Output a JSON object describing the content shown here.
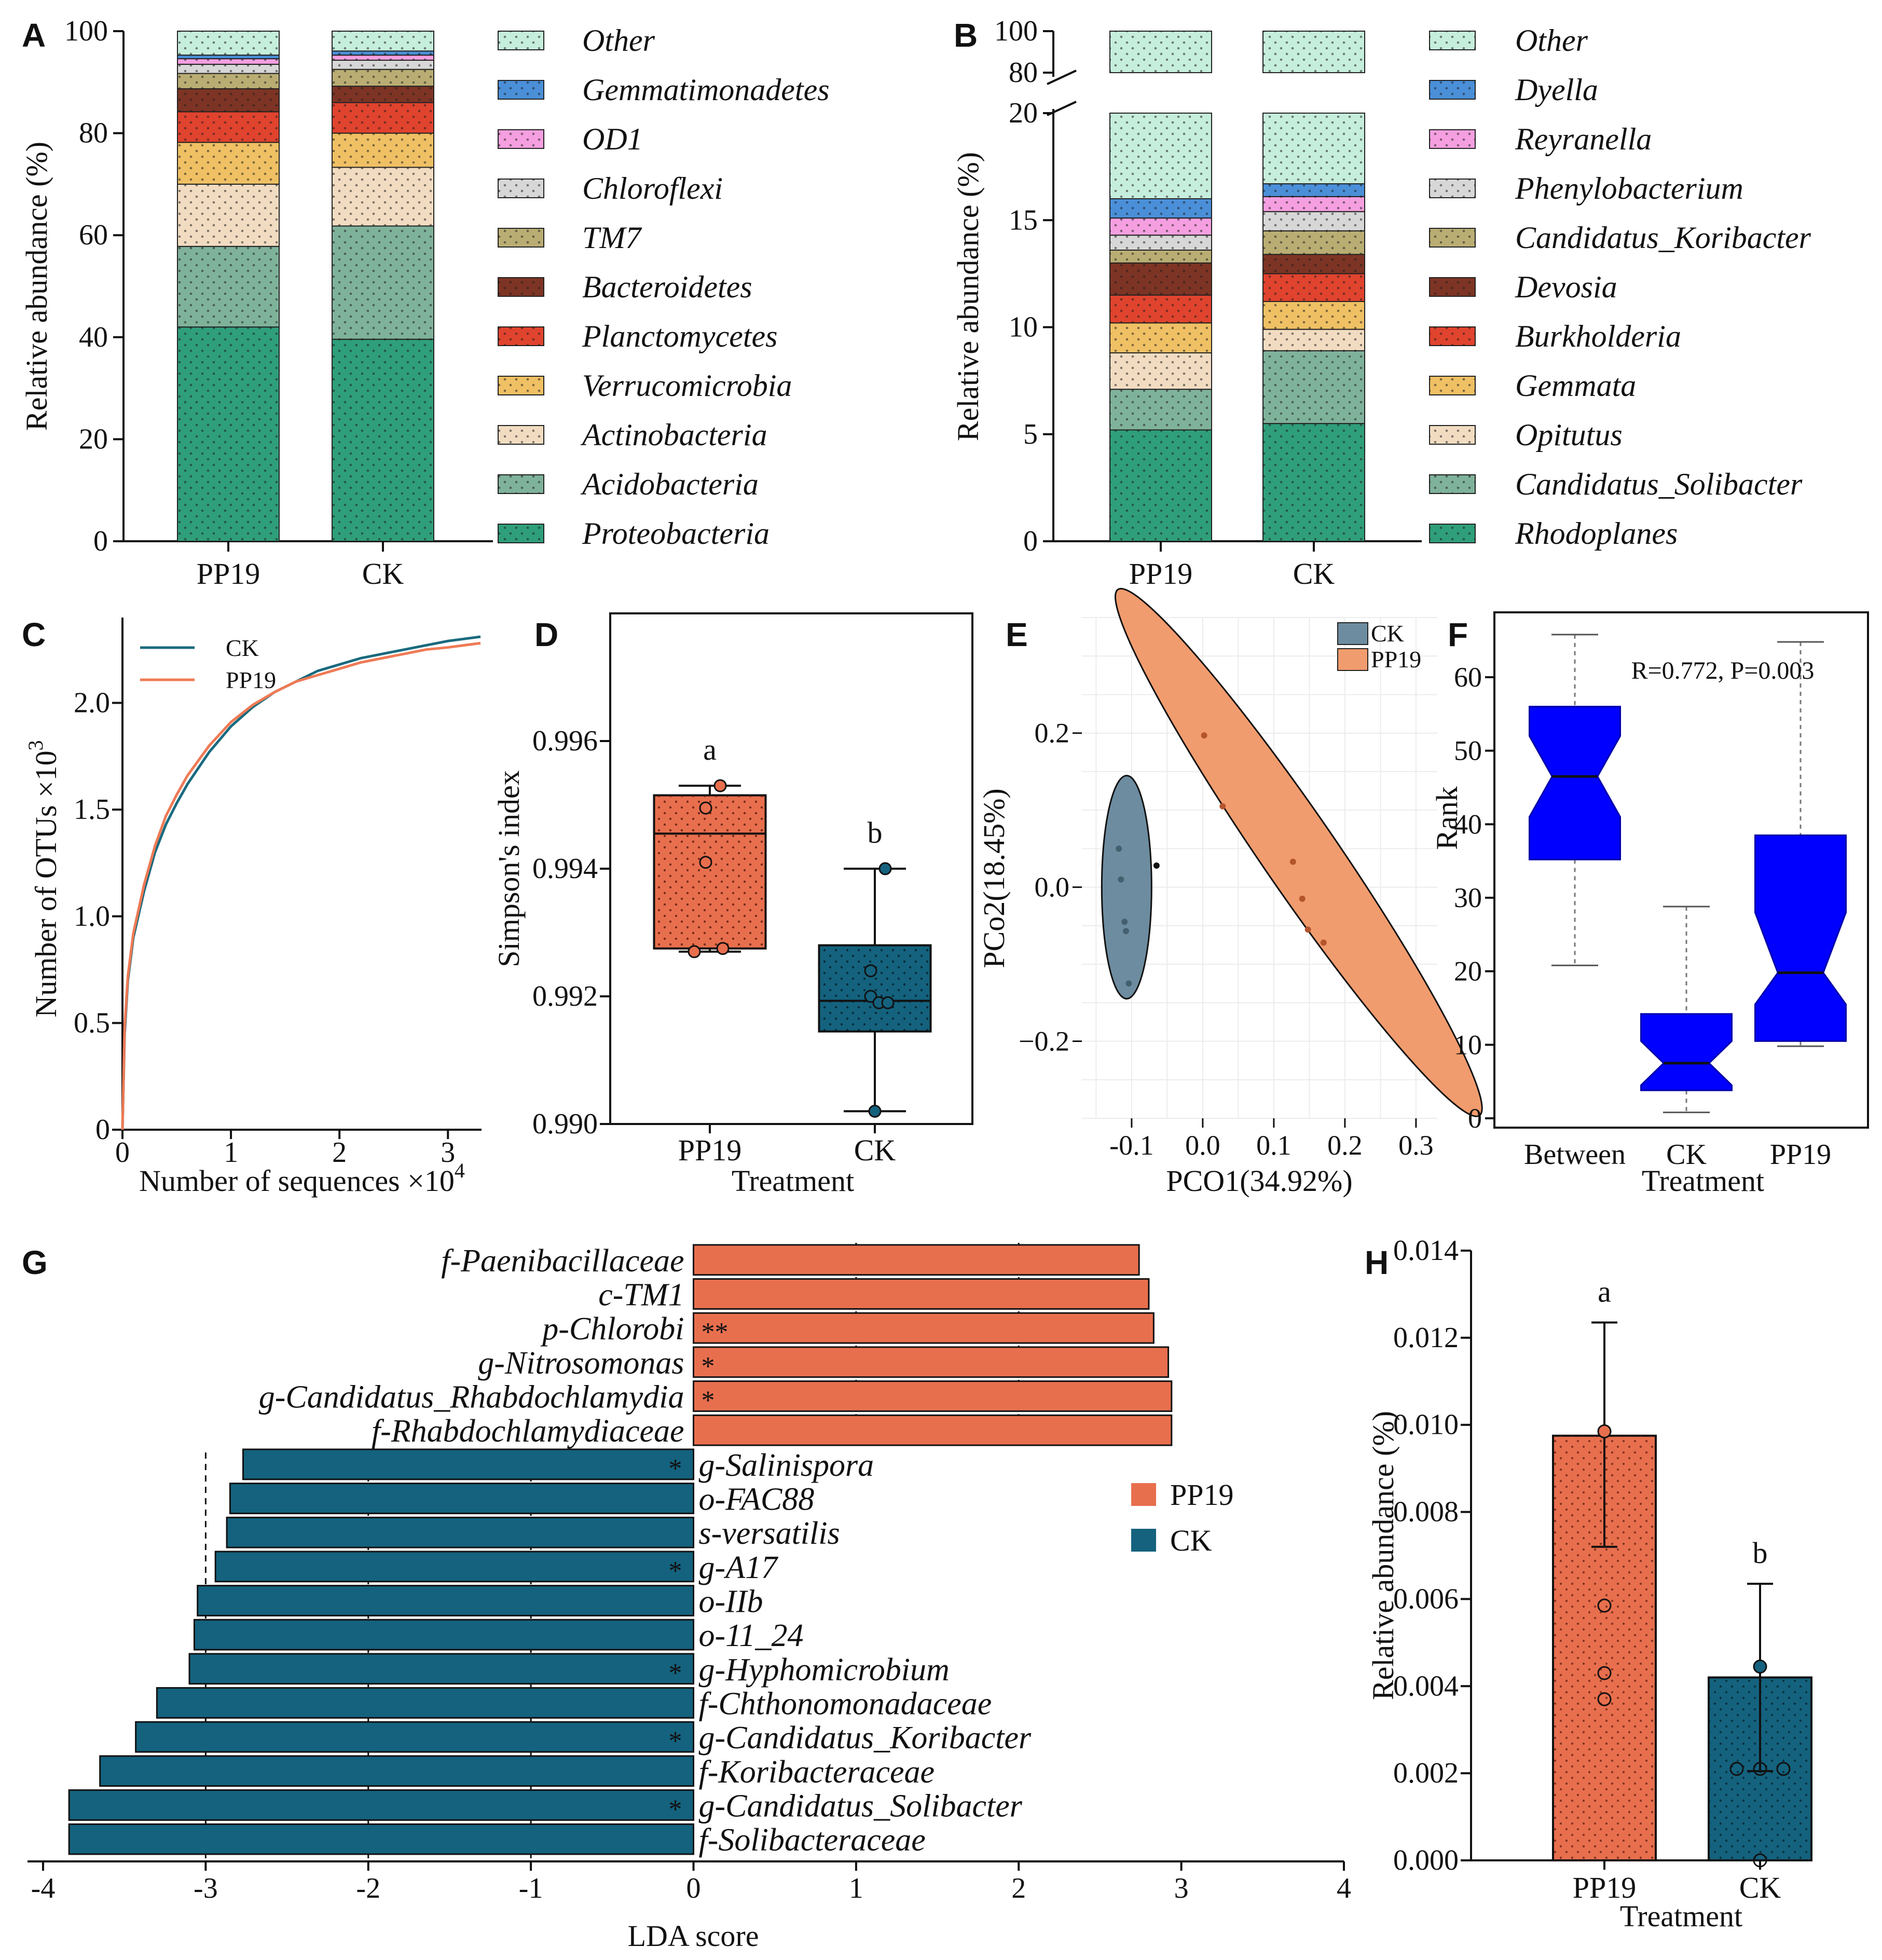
{
  "colors": {
    "proteo": "#2f9e7a",
    "acido": "#7fb29a",
    "actino": "#f2dcc1",
    "verruco": "#efc064",
    "plancto": "#e0432e",
    "bactero": "#7d3424",
    "tm7": "#b9ad73",
    "chloro": "#d7d7d7",
    "od1": "#f59fe0",
    "gemmati": "#4a8fd8",
    "other": "#c6eedc",
    "pp19": "#e86f4e",
    "ck": "#14627e",
    "blue": "#0000ff",
    "line_ck": "#1a6a7e",
    "line_pp19": "#ef7a55",
    "pcoa_ck": "#6d8ca0",
    "pcoa_pp19": "#f19c6e"
  },
  "panels": {
    "A": "A",
    "B": "B",
    "C": "C",
    "D": "D",
    "E": "E",
    "F": "F",
    "G": "G",
    "H": "H"
  },
  "chart_data": [
    {
      "id": "A",
      "type": "bar",
      "stacked": true,
      "categories": [
        "PP19",
        "CK"
      ],
      "ylabel": "Relative abundance (%)",
      "ylim": [
        0,
        100
      ],
      "yticks": [
        "0",
        "20",
        "40",
        "60",
        "80",
        "100"
      ],
      "series": [
        {
          "name": "Proteobacteria",
          "color_key": "proteo",
          "values": [
            42,
            39.6
          ]
        },
        {
          "name": "Acidobacteria",
          "color_key": "acido",
          "values": [
            15.8,
            22.2
          ]
        },
        {
          "name": "Actinobacteria",
          "color_key": "actino",
          "values": [
            12.2,
            11.5
          ]
        },
        {
          "name": "Verrucomicrobia",
          "color_key": "verruco",
          "values": [
            8.2,
            6.7
          ]
        },
        {
          "name": "Planctomycetes",
          "color_key": "plancto",
          "values": [
            6,
            6
          ]
        },
        {
          "name": "Bacteroidetes",
          "color_key": "bactero",
          "values": [
            4.5,
            3.2
          ]
        },
        {
          "name": "TM7",
          "color_key": "tm7",
          "values": [
            3,
            3.3
          ]
        },
        {
          "name": "Chloroflexi",
          "color_key": "chloro",
          "values": [
            1.8,
            1.8
          ]
        },
        {
          "name": "OD1",
          "color_key": "od1",
          "values": [
            1.1,
            1.0
          ]
        },
        {
          "name": "Gemmatimonadetes",
          "color_key": "gemmati",
          "values": [
            0.7,
            0.8
          ]
        },
        {
          "name": "Other",
          "color_key": "other",
          "values": [
            4.7,
            3.9
          ]
        }
      ],
      "legend": [
        "Other",
        "Gemmatimonadetes",
        "OD1",
        "Chloroflexi",
        "TM7",
        "Bacteroidetes",
        "Planctomycetes",
        "Verrucomicrobia",
        "Actinobacteria",
        "Acidobacteria",
        "Proteobacteria"
      ]
    },
    {
      "id": "B",
      "type": "bar",
      "stacked": true,
      "broken_axis": true,
      "categories": [
        "PP19",
        "CK"
      ],
      "ylabel": "Relative abundance (%)",
      "yticks_lower": [
        "0",
        "5",
        "10",
        "15",
        "20"
      ],
      "yticks_upper": [
        "80",
        "100"
      ],
      "series": [
        {
          "name": "Rhodoplanes",
          "color_key": "proteo",
          "values": [
            5.2,
            5.5
          ]
        },
        {
          "name": "Candidatus_Solibacter",
          "color_key": "acido",
          "values": [
            1.9,
            3.4
          ]
        },
        {
          "name": "Opitutus",
          "color_key": "actino",
          "values": [
            1.7,
            1.0
          ]
        },
        {
          "name": "Gemmata",
          "color_key": "verruco",
          "values": [
            1.4,
            1.3
          ]
        },
        {
          "name": "Burkholderia",
          "color_key": "plancto",
          "values": [
            1.3,
            1.3
          ]
        },
        {
          "name": "Devosia",
          "color_key": "bactero",
          "values": [
            1.5,
            0.9
          ]
        },
        {
          "name": "Candidatus_Koribacter",
          "color_key": "tm7",
          "values": [
            0.6,
            1.1
          ]
        },
        {
          "name": "Phenylobacterium",
          "color_key": "chloro",
          "values": [
            0.7,
            0.9
          ]
        },
        {
          "name": "Reyranella",
          "color_key": "od1",
          "values": [
            0.8,
            0.7
          ]
        },
        {
          "name": "Dyella",
          "color_key": "gemmati",
          "values": [
            0.9,
            0.6
          ]
        },
        {
          "name": "Other",
          "color_key": "other",
          "values": [
            84,
            83.3
          ]
        }
      ],
      "legend": [
        "Other",
        "Dyella",
        "Reyranella",
        "Phenylobacterium",
        "Candidatus_Koribacter",
        "Devosia",
        "Burkholderia",
        "Gemmata",
        "Opitutus",
        "Candidatus_Solibacter",
        "Rhodoplanes"
      ]
    },
    {
      "id": "C",
      "type": "line",
      "xlabel": "Number of sequences ×10",
      "xlabel_sup": "4",
      "ylabel": "Number of OTUs ×10",
      "ylabel_sup": "3",
      "xlim": [
        0,
        3.3
      ],
      "ylim": [
        0,
        2.4
      ],
      "xticks": [
        "0",
        "1",
        "2",
        "3"
      ],
      "yticks": [
        "0",
        "0.5",
        "1.0",
        "1.5",
        "2.0"
      ],
      "series": [
        {
          "name": "CK",
          "color_key": "line_ck",
          "x": [
            0,
            0.02,
            0.05,
            0.1,
            0.2,
            0.3,
            0.4,
            0.5,
            0.6,
            0.8,
            1.0,
            1.2,
            1.4,
            1.6,
            1.8,
            2.0,
            2.2,
            2.4,
            2.6,
            2.8,
            3.0,
            3.3
          ],
          "y": [
            0,
            0.45,
            0.7,
            0.9,
            1.12,
            1.3,
            1.43,
            1.53,
            1.62,
            1.77,
            1.89,
            1.98,
            2.05,
            2.1,
            2.15,
            2.18,
            2.21,
            2.23,
            2.25,
            2.27,
            2.29,
            2.31
          ]
        },
        {
          "name": "PP19",
          "color_key": "line_pp19",
          "x": [
            0,
            0.02,
            0.05,
            0.1,
            0.2,
            0.3,
            0.4,
            0.5,
            0.6,
            0.8,
            1.0,
            1.2,
            1.4,
            1.6,
            1.8,
            2.0,
            2.2,
            2.4,
            2.6,
            2.8,
            3.0,
            3.3
          ],
          "y": [
            0,
            0.48,
            0.72,
            0.92,
            1.15,
            1.33,
            1.47,
            1.57,
            1.66,
            1.8,
            1.91,
            1.99,
            2.05,
            2.1,
            2.13,
            2.16,
            2.19,
            2.21,
            2.23,
            2.25,
            2.26,
            2.28
          ]
        }
      ]
    },
    {
      "id": "D",
      "type": "box",
      "categories": [
        "PP19",
        "CK"
      ],
      "xlabel": "Treatment",
      "ylabel": "Simpson's index",
      "ylim": [
        0.99,
        0.998
      ],
      "yticks": [
        "0.990",
        "0.992",
        "0.994",
        "0.996"
      ],
      "boxes": [
        {
          "name": "PP19",
          "color_key": "pp19",
          "min": 0.9927,
          "q1": 0.99275,
          "median": 0.99455,
          "q3": 0.99515,
          "max": 0.9953,
          "points": [
            0.9953,
            0.99495,
            0.9941,
            0.9927,
            0.99275
          ],
          "letter": "a"
        },
        {
          "name": "CK",
          "color_key": "ck",
          "min": 0.9902,
          "q1": 0.99145,
          "median": 0.99193,
          "q3": 0.9928,
          "max": 0.994,
          "points": [
            0.994,
            0.9924,
            0.992,
            0.9919,
            0.9919,
            0.9902
          ],
          "letter": "b"
        }
      ]
    },
    {
      "id": "E",
      "type": "scatter",
      "xlabel": "PCO1(34.92%)",
      "ylabel": "PCo2(18.45%)",
      "xlim": [
        -0.17,
        0.33
      ],
      "ylim": [
        -0.3,
        0.35
      ],
      "xticks": [
        "-0.1",
        "0.0",
        "0.1",
        "0.2",
        "0.3"
      ],
      "yticks": [
        "-0.2",
        "0.0",
        "0.2"
      ],
      "series": [
        {
          "name": "CK",
          "color_key": "pcoa_ck",
          "x": [
            -0.118,
            -0.115,
            -0.11,
            -0.108,
            -0.104,
            -0.065
          ],
          "y": [
            0.05,
            0.01,
            -0.045,
            -0.057,
            -0.125,
            0.028
          ]
        },
        {
          "name": "PP19",
          "color_key": "pcoa_pp19",
          "x": [
            0.002,
            0.028,
            0.127,
            0.14,
            0.148,
            0.17
          ],
          "y": [
            0.197,
            0.105,
            0.033,
            -0.015,
            -0.055,
            -0.072
          ]
        }
      ]
    },
    {
      "id": "F",
      "type": "box",
      "notched": true,
      "categories": [
        "Between",
        "CK",
        "PP19"
      ],
      "xlabel": "Treatment",
      "ylabel": "Rank",
      "ylim": [
        0,
        66
      ],
      "yticks": [
        "0",
        "10",
        "20",
        "30",
        "40",
        "50",
        "60"
      ],
      "annotation": "R=0.772, P=0.003",
      "boxes": [
        {
          "name": "Between",
          "min": 20.8,
          "q1": 35.2,
          "median": 46.5,
          "q3": 56,
          "max": 65.8,
          "notch_lo": 41,
          "notch_hi": 52
        },
        {
          "name": "CK",
          "min": 0.8,
          "q1": 3.8,
          "median": 7.5,
          "q3": 14.2,
          "max": 28.8,
          "notch_lo": 4.5,
          "notch_hi": 10.5
        },
        {
          "name": "PP19",
          "min": 9.8,
          "q1": 10.5,
          "median": 19.8,
          "q3": 38.5,
          "max": 64.8,
          "notch_lo": 15.5,
          "notch_hi": 28
        }
      ]
    },
    {
      "id": "G",
      "type": "bar",
      "orientation": "horizontal",
      "xlabel": "LDA score",
      "xlim": [
        -4,
        4
      ],
      "xticks": [
        "-4",
        "-3",
        "-2",
        "-1",
        "0",
        "1",
        "2",
        "3",
        "4"
      ],
      "legend": [
        "PP19",
        "CK"
      ],
      "bars": [
        {
          "label": "f-Paenibacillaceae",
          "value": 2.74,
          "group": "PP19",
          "star": ""
        },
        {
          "label": "c-TM1",
          "value": 2.8,
          "group": "PP19",
          "star": ""
        },
        {
          "label": "p-Chlorobi",
          "value": 2.83,
          "group": "PP19",
          "star": "**"
        },
        {
          "label": "g-Nitrosomonas",
          "value": 2.92,
          "group": "PP19",
          "star": "*"
        },
        {
          "label": "g-Candidatus_Rhabdochlamydia",
          "value": 2.94,
          "group": "PP19",
          "star": "*"
        },
        {
          "label": "f-Rhabdochlamydiaceae",
          "value": 2.94,
          "group": "PP19",
          "star": ""
        },
        {
          "label": "g-Salinispora",
          "value": -2.77,
          "group": "CK",
          "star": "*"
        },
        {
          "label": "o-FAC88",
          "value": -2.85,
          "group": "CK",
          "star": ""
        },
        {
          "label": "s-versatilis",
          "value": -2.87,
          "group": "CK",
          "star": ""
        },
        {
          "label": "g-A17",
          "value": -2.94,
          "group": "CK",
          "star": "*"
        },
        {
          "label": "o-IIb",
          "value": -3.05,
          "group": "CK",
          "star": ""
        },
        {
          "label": "o-11_24",
          "value": -3.07,
          "group": "CK",
          "star": ""
        },
        {
          "label": "g-Hyphomicrobium",
          "value": -3.1,
          "group": "CK",
          "star": "*"
        },
        {
          "label": "f-Chthonomonadaceae",
          "value": -3.3,
          "group": "CK",
          "star": ""
        },
        {
          "label": "g-Candidatus_Koribacter",
          "value": -3.43,
          "group": "CK",
          "star": "*"
        },
        {
          "label": "f-Koribacteraceae",
          "value": -3.65,
          "group": "CK",
          "star": ""
        },
        {
          "label": "g-Candidatus_Solibacter",
          "value": -3.84,
          "group": "CK",
          "star": "*"
        },
        {
          "label": "f-Solibacteraceae",
          "value": -3.84,
          "group": "CK",
          "star": ""
        }
      ]
    },
    {
      "id": "H",
      "type": "bar",
      "categories": [
        "PP19",
        "CK"
      ],
      "xlabel": "Treatment",
      "ylabel": "Relative abundance (%)",
      "ylim": [
        0,
        0.014
      ],
      "yticks": [
        "0.000",
        "0.002",
        "0.004",
        "0.006",
        "0.008",
        "0.010",
        "0.012",
        "0.014"
      ],
      "bars": [
        {
          "name": "PP19",
          "color_key": "pp19",
          "value": 0.00975,
          "err_hi": 0.01235,
          "err_lo": 0.0072,
          "points": [
            0.00985,
            0.00585,
            0.0043,
            0.0037
          ],
          "letter": "a"
        },
        {
          "name": "CK",
          "color_key": "ck",
          "value": 0.0042,
          "err_hi": 0.00635,
          "err_lo": 0.00205,
          "points": [
            0.00445,
            0.0021,
            0.0021,
            0.0021,
            0.0
          ],
          "letter": "b"
        }
      ]
    }
  ]
}
